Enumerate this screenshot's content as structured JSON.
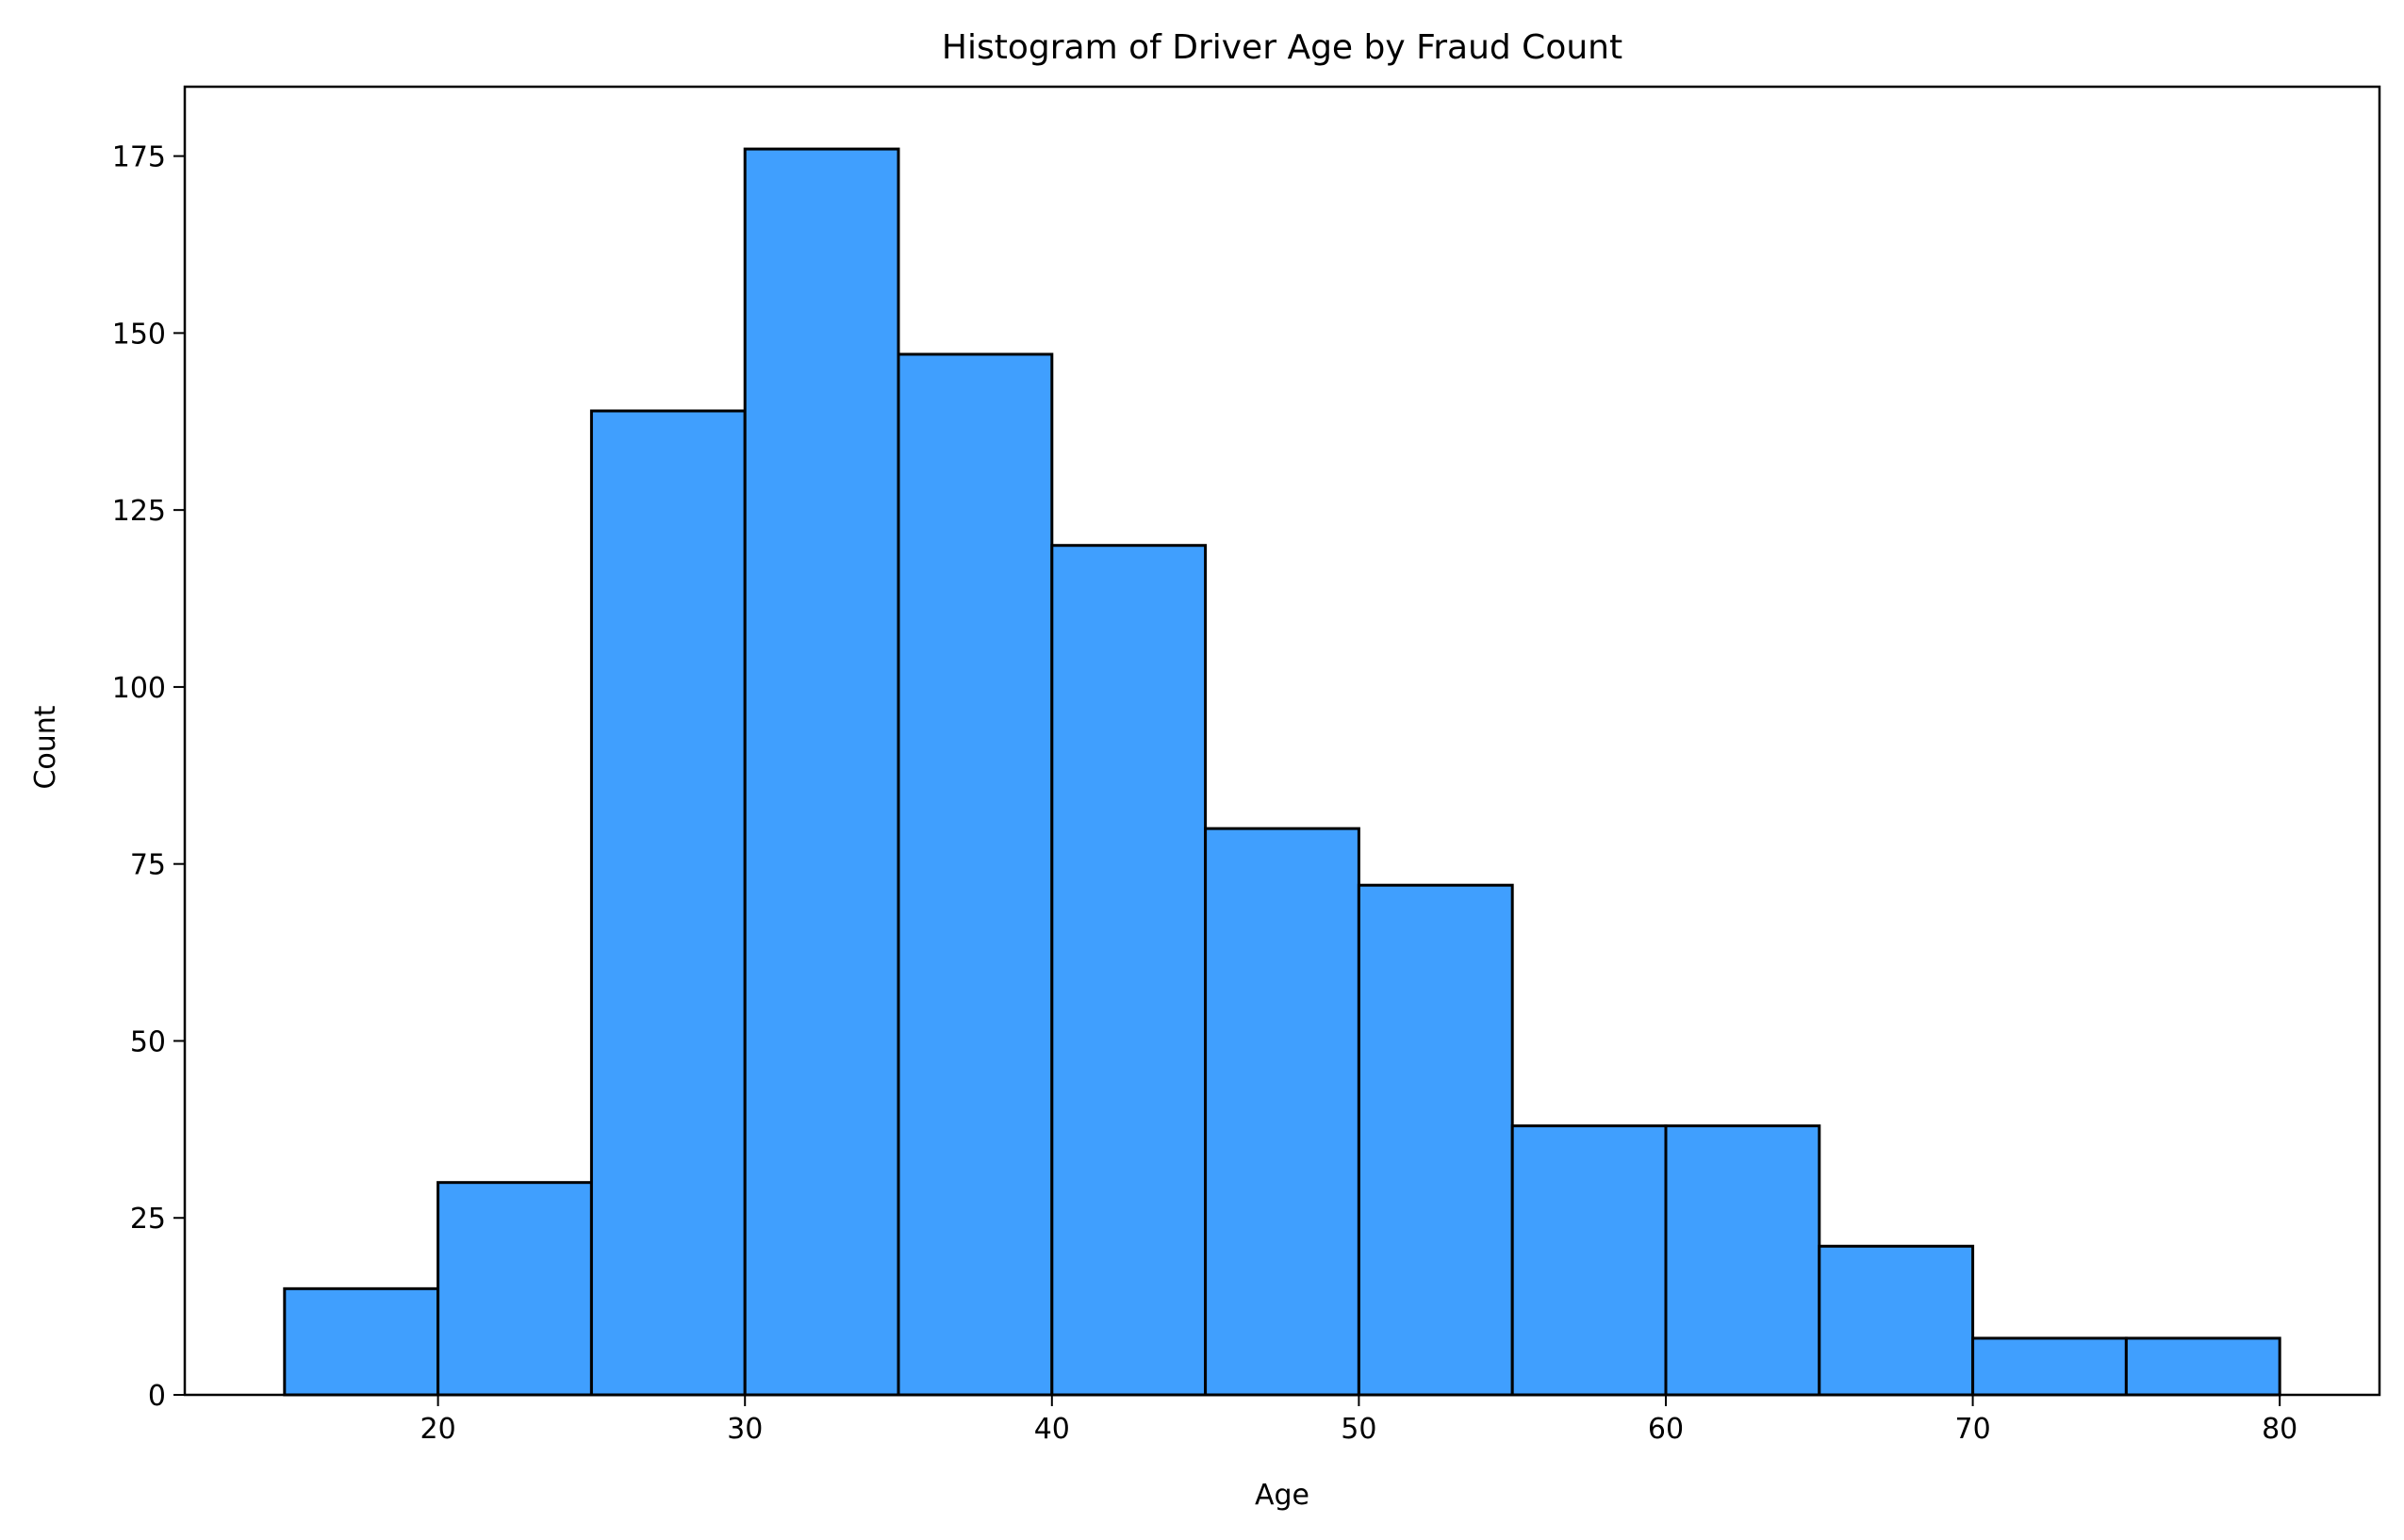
{
  "chart_data": {
    "type": "bar",
    "title": "Histogram of Driver Age by Fraud Count",
    "xlabel": "Age",
    "ylabel": "Count",
    "bins": [
      {
        "start": 15,
        "end": 20,
        "count": 15
      },
      {
        "start": 20,
        "end": 25,
        "count": 30
      },
      {
        "start": 25,
        "end": 30,
        "count": 139
      },
      {
        "start": 30,
        "end": 35,
        "count": 176
      },
      {
        "start": 35,
        "end": 40,
        "count": 147
      },
      {
        "start": 40,
        "end": 45,
        "count": 120
      },
      {
        "start": 45,
        "end": 50,
        "count": 80
      },
      {
        "start": 50,
        "end": 55,
        "count": 72
      },
      {
        "start": 55,
        "end": 60,
        "count": 38
      },
      {
        "start": 60,
        "end": 65,
        "count": 38
      },
      {
        "start": 65,
        "end": 70,
        "count": 21
      },
      {
        "start": 70,
        "end": 75,
        "count": 8
      },
      {
        "start": 75,
        "end": 80,
        "count": 8
      }
    ],
    "xlim": [
      11.75,
      83.25
    ],
    "ylim": [
      0,
      184.8
    ],
    "xticks": [
      "20",
      "30",
      "40",
      "50",
      "60",
      "70",
      "80"
    ],
    "yticks": [
      "0",
      "25",
      "50",
      "75",
      "100",
      "125",
      "150",
      "175"
    ],
    "bar_color": "#409ffe",
    "edge_color": "#000000",
    "grid": false
  }
}
